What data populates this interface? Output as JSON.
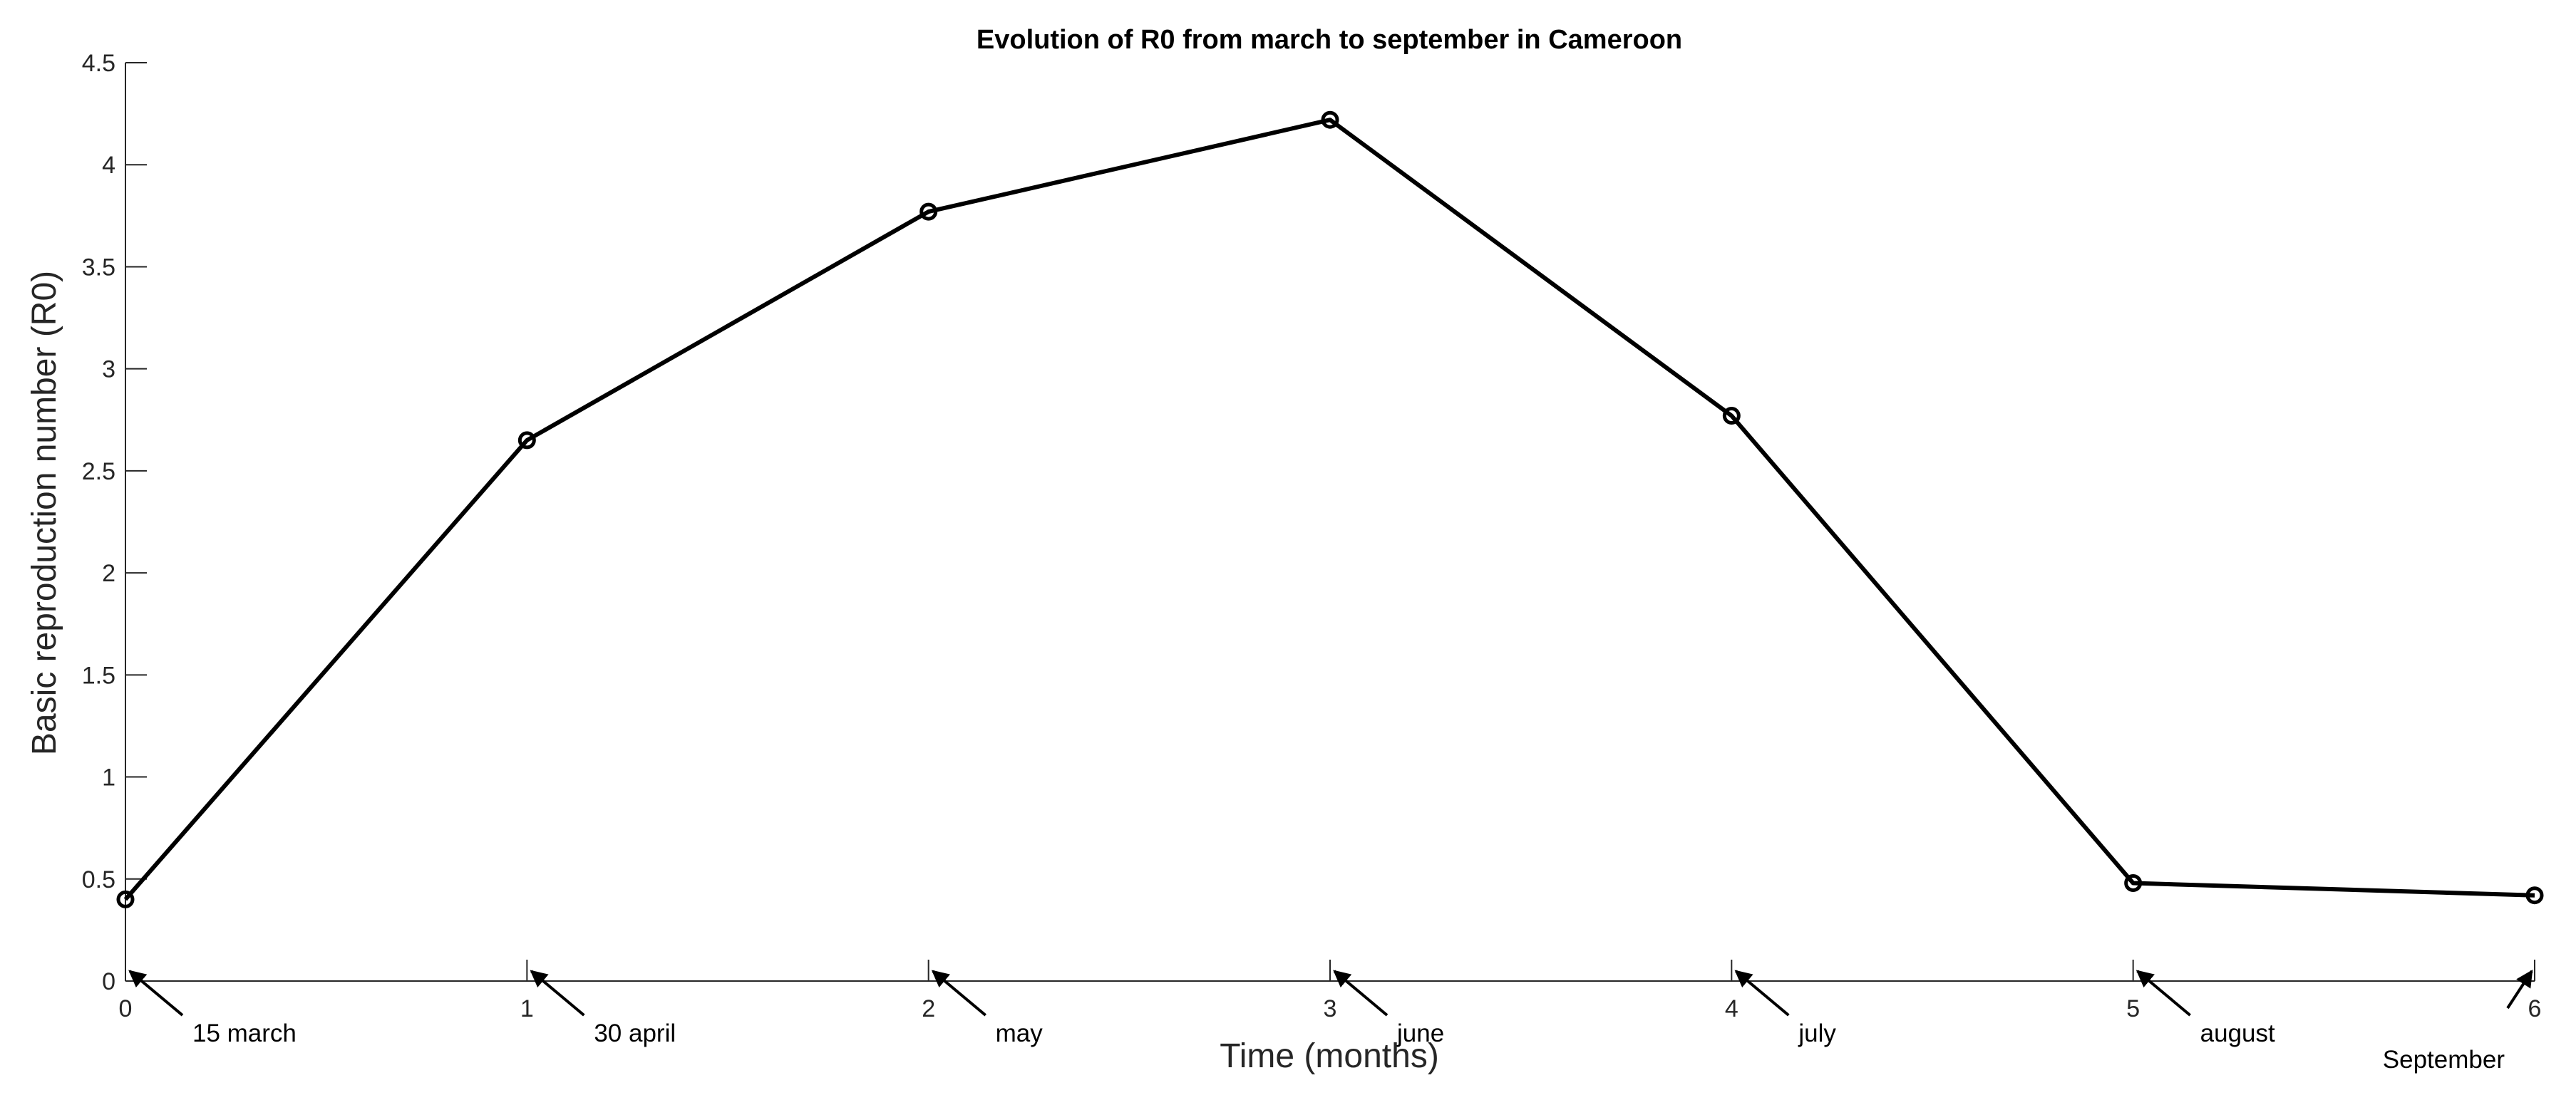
{
  "chart_data": {
    "type": "line",
    "title": "Evolution of R0 from march to september in Cameroon",
    "xlabel": "Time (months)",
    "ylabel": "Basic reproduction number (R0)",
    "xlim": [
      0,
      6
    ],
    "ylim": [
      0,
      4.5
    ],
    "xticks": [
      0,
      1,
      2,
      3,
      4,
      5,
      6
    ],
    "xtick_labels": [
      "0",
      "1",
      "2",
      "3",
      "4",
      "5",
      "6"
    ],
    "yticks": [
      0,
      0.5,
      1,
      1.5,
      2,
      2.5,
      3,
      3.5,
      4,
      4.5
    ],
    "ytick_labels": [
      "0",
      "0.5",
      "1",
      "1.5",
      "2",
      "2.5",
      "3",
      "3.5",
      "4",
      "4.5"
    ],
    "grid": false,
    "series": [
      {
        "name": "R0",
        "color": "#000000",
        "marker": "circle",
        "x": [
          0,
          1,
          2,
          3,
          4,
          5,
          6
        ],
        "values": [
          0.4,
          2.65,
          3.77,
          4.22,
          2.77,
          0.48,
          0.42
        ]
      }
    ],
    "annotations": [
      {
        "text": "15 march",
        "x": 0,
        "direction": "right"
      },
      {
        "text": "30 april",
        "x": 1,
        "direction": "right"
      },
      {
        "text": "may",
        "x": 2,
        "direction": "right"
      },
      {
        "text": "june",
        "x": 3,
        "direction": "right"
      },
      {
        "text": "july",
        "x": 4,
        "direction": "right"
      },
      {
        "text": "august",
        "x": 5,
        "direction": "right"
      },
      {
        "text": "September",
        "x": 6,
        "direction": "left"
      }
    ]
  }
}
